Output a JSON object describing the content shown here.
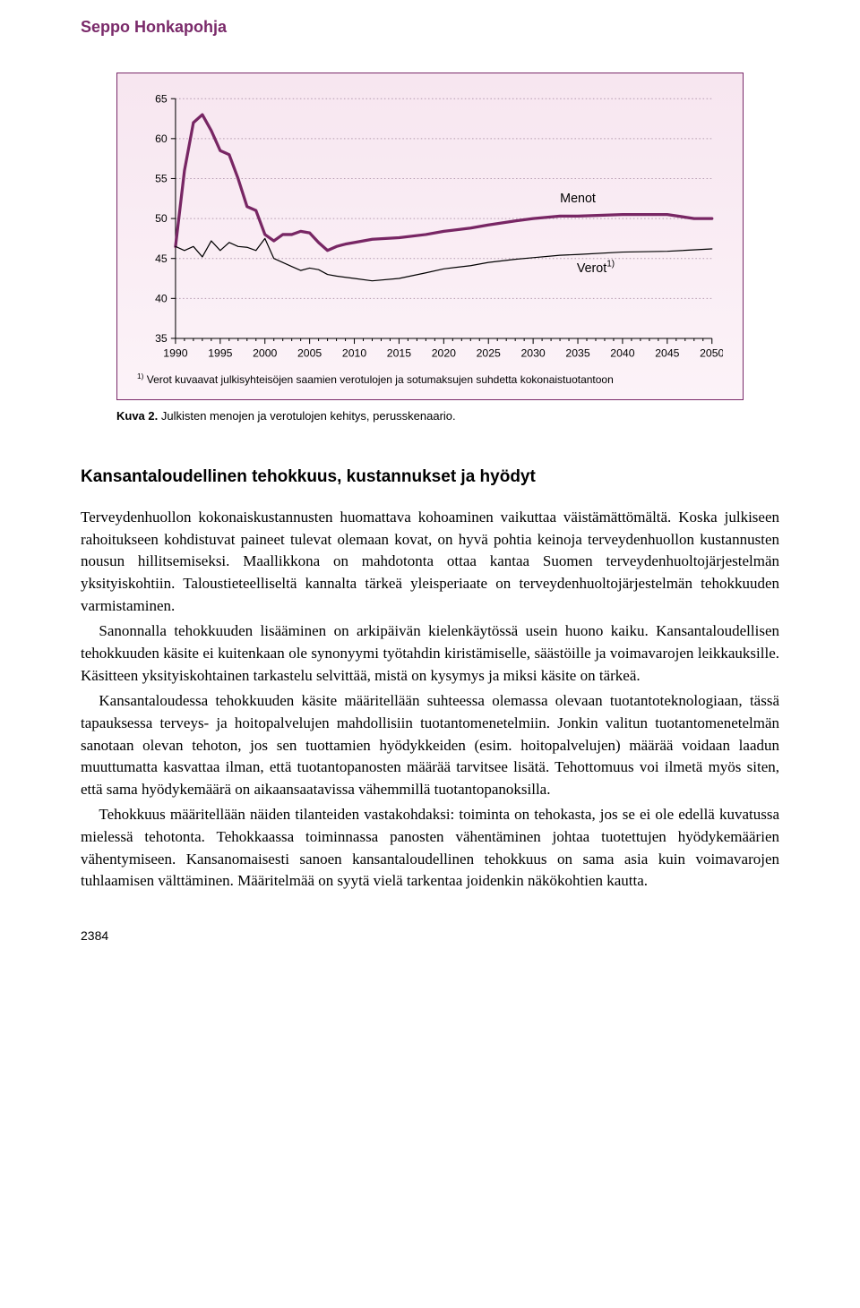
{
  "running_head": "Seppo Honkapohja",
  "chart": {
    "type": "line",
    "y_unit": "%",
    "ylim": [
      35,
      65
    ],
    "yticks": [
      35,
      40,
      45,
      50,
      55,
      60,
      65
    ],
    "xlim": [
      1990,
      2050
    ],
    "xticks": [
      1990,
      1995,
      2000,
      2005,
      2010,
      2015,
      2020,
      2025,
      2030,
      2035,
      2040,
      2045,
      2050
    ],
    "grid_color": "#b49ab0",
    "axis_color": "#000000",
    "background_gradient": [
      "#f7e6f0",
      "#fcf3f8"
    ],
    "series": [
      {
        "name": "Menot",
        "label": "Menot",
        "color": "#782664",
        "line_width": 3.2,
        "points": [
          [
            1990,
            46.5
          ],
          [
            1991,
            56
          ],
          [
            1992,
            62
          ],
          [
            1993,
            63
          ],
          [
            1994,
            61
          ],
          [
            1995,
            58.5
          ],
          [
            1996,
            58
          ],
          [
            1997,
            55
          ],
          [
            1998,
            51.5
          ],
          [
            1999,
            51
          ],
          [
            2000,
            48
          ],
          [
            2001,
            47.2
          ],
          [
            2002,
            48
          ],
          [
            2003,
            48
          ],
          [
            2004,
            48.4
          ],
          [
            2005,
            48.2
          ],
          [
            2006,
            47.0
          ],
          [
            2007,
            46.0
          ],
          [
            2008,
            46.5
          ],
          [
            2009,
            46.8
          ],
          [
            2010,
            47.0
          ],
          [
            2012,
            47.4
          ],
          [
            2015,
            47.6
          ],
          [
            2018,
            48.0
          ],
          [
            2020,
            48.4
          ],
          [
            2023,
            48.8
          ],
          [
            2025,
            49.2
          ],
          [
            2028,
            49.7
          ],
          [
            2030,
            50.0
          ],
          [
            2033,
            50.3
          ],
          [
            2035,
            50.3
          ],
          [
            2040,
            50.5
          ],
          [
            2045,
            50.5
          ],
          [
            2048,
            50.0
          ],
          [
            2050,
            50.0
          ]
        ]
      },
      {
        "name": "Verot",
        "label": "Verot",
        "label_sup": "1)",
        "color": "#000000",
        "line_width": 1.2,
        "points": [
          [
            1990,
            46.5
          ],
          [
            1991,
            46
          ],
          [
            1992,
            46.5
          ],
          [
            1993,
            45.2
          ],
          [
            1994,
            47.2
          ],
          [
            1995,
            46.0
          ],
          [
            1996,
            47.0
          ],
          [
            1997,
            46.5
          ],
          [
            1998,
            46.4
          ],
          [
            1999,
            46.0
          ],
          [
            2000,
            47.5
          ],
          [
            2001,
            45.0
          ],
          [
            2002,
            44.5
          ],
          [
            2003,
            44.0
          ],
          [
            2004,
            43.5
          ],
          [
            2005,
            43.8
          ],
          [
            2006,
            43.6
          ],
          [
            2007,
            43.0
          ],
          [
            2008,
            42.8
          ],
          [
            2010,
            42.5
          ],
          [
            2012,
            42.2
          ],
          [
            2015,
            42.5
          ],
          [
            2018,
            43.2
          ],
          [
            2020,
            43.7
          ],
          [
            2023,
            44.1
          ],
          [
            2025,
            44.5
          ],
          [
            2028,
            44.9
          ],
          [
            2030,
            45.1
          ],
          [
            2033,
            45.4
          ],
          [
            2035,
            45.5
          ],
          [
            2040,
            45.8
          ],
          [
            2045,
            45.9
          ],
          [
            2050,
            46.2
          ]
        ]
      }
    ],
    "series_labels": {
      "menot": {
        "text": "Menot",
        "x": 2035,
        "y": 52,
        "fontsize": 14
      },
      "verot": {
        "text": "Verot",
        "sup": "1)",
        "x": 2037,
        "y": 43.3,
        "fontsize": 14
      }
    },
    "footnote_sup": "1)",
    "footnote": " Verot kuvaavat julkisyhteisöjen saamien verotulojen ja sotumaksujen suhdetta kokonaistuotantoon",
    "title_fontsize": 13,
    "tick_fontsize": 12,
    "label_font": "Arial"
  },
  "caption_label": "Kuva 2.",
  "caption_text": " Julkisten menojen ja verotulojen kehitys, perusskenaario.",
  "section_heading": "Kansantaloudellinen tehokkuus, kustannukset ja hyödyt",
  "paragraphs": [
    "Terveydenhuollon kokonaiskustannusten huomattava kohoaminen vaikuttaa väistämättömältä. Koska julkiseen rahoitukseen kohdistuvat paineet tulevat olemaan kovat, on hyvä pohtia keinoja terveydenhuollon kustannusten nousun hillitsemiseksi. Maallikkona on mahdotonta ottaa kantaa Suomen terveydenhuoltojärjestelmän yksityiskohtiin. Taloustieteelliseltä kannalta tärkeä yleisperiaate on terveydenhuoltojärjestelmän tehokkuuden varmistaminen.",
    "Sanonnalla tehokkuuden lisääminen on arkipäivän kielenkäytössä usein huono kaiku. Kansantaloudellisen tehokkuuden käsite ei kuitenkaan ole synonyymi työtahdin kiristämiselle, säästöille ja voimavarojen leikkauksille. Käsitteen yksityiskohtainen tarkastelu selvittää, mistä on kysymys ja miksi käsite on tärkeä.",
    "Kansantaloudessa tehokkuuden käsite määritellään suhteessa olemassa olevaan tuotantoteknologiaan, tässä tapauksessa terveys- ja hoitopalvelujen mahdollisiin tuotantomenetelmiin. Jonkin valitun tuotantomenetelmän sanotaan olevan tehoton, jos sen tuottamien hyödykkeiden (esim. hoitopalvelujen) määrää voidaan laadun muuttumatta kasvattaa ilman, että tuotantopanosten määrää tarvitsee lisätä. Tehottomuus voi ilmetä myös siten, että sama hyödykemäärä on aikaansaatavissa vähemmillä tuotantopanoksilla.",
    "Tehokkuus määritellään näiden tilanteiden vastakohdaksi: toiminta on tehokasta, jos se ei ole edellä kuvatussa mielessä tehotonta. Tehokkaassa toiminnassa panosten vähentäminen johtaa tuotettujen hyödykemäärien vähentymiseen. Kansanomaisesti sanoen kansantaloudellinen tehokkuus on sama asia kuin voimavarojen tuhlaamisen välttäminen. Määritelmää on syytä vielä tarkentaa joidenkin näkökohtien kautta."
  ],
  "page_number": "2384"
}
